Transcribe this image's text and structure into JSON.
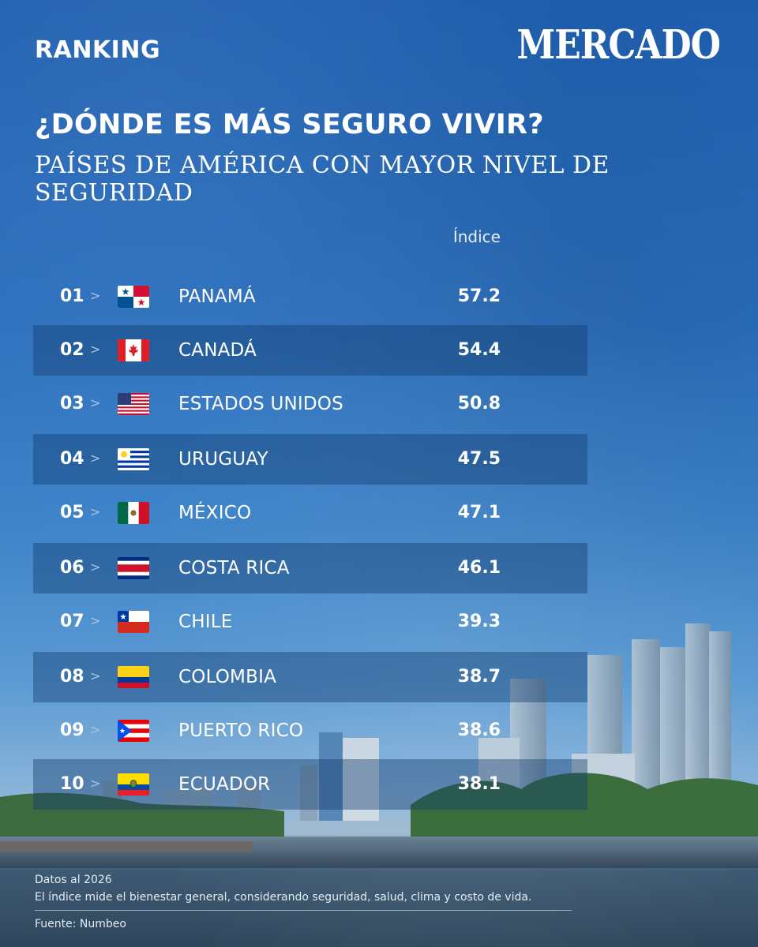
{
  "header": {
    "ranking_label": "RANKING",
    "brand": "MERCADO",
    "title": "¿DÓNDE ES MÁS SEGURO VIVIR?",
    "subtitle": "PAÍSES DE AMÉRICA CON MAYOR NIVEL DE SEGURIDAD"
  },
  "table": {
    "column_header": "Índice",
    "rows": [
      {
        "rank": "01",
        "country": "PANAMÁ",
        "value": "57.2",
        "flag": "panama-flag-icon"
      },
      {
        "rank": "02",
        "country": "CANADÁ",
        "value": "54.4",
        "flag": "canada-flag-icon"
      },
      {
        "rank": "03",
        "country": "ESTADOS UNIDOS",
        "value": "50.8",
        "flag": "usa-flag-icon"
      },
      {
        "rank": "04",
        "country": "URUGUAY",
        "value": "47.5",
        "flag": "uruguay-flag-icon"
      },
      {
        "rank": "05",
        "country": "MÉXICO",
        "value": "47.1",
        "flag": "mexico-flag-icon"
      },
      {
        "rank": "06",
        "country": "COSTA RICA",
        "value": "46.1",
        "flag": "costa-rica-flag-icon"
      },
      {
        "rank": "07",
        "country": "CHILE",
        "value": "39.3",
        "flag": "chile-flag-icon"
      },
      {
        "rank": "08",
        "country": "COLOMBIA",
        "value": "38.7",
        "flag": "colombia-flag-icon"
      },
      {
        "rank": "09",
        "country": "PUERTO RICO",
        "value": "38.6",
        "flag": "puerto-rico-flag-icon"
      },
      {
        "rank": "10",
        "country": "ECUADOR",
        "value": "38.1",
        "flag": "ecuador-flag-icon"
      }
    ]
  },
  "chart_data": {
    "type": "table",
    "title": "¿DÓNDE ES MÁS SEGURO VIVIR?",
    "subtitle": "PAÍSES DE AMÉRICA CON MAYOR NIVEL DE SEGURIDAD",
    "columns": [
      "Índice"
    ],
    "categories": [
      "PANAMÁ",
      "CANADÁ",
      "ESTADOS UNIDOS",
      "URUGUAY",
      "MÉXICO",
      "COSTA RICA",
      "CHILE",
      "COLOMBIA",
      "PUERTO RICO",
      "ECUADOR"
    ],
    "values": [
      57.2,
      54.4,
      50.8,
      47.5,
      47.1,
      46.1,
      39.3,
      38.7,
      38.6,
      38.1
    ]
  },
  "footer": {
    "date_note": "Datos al 2026",
    "description": "El índice mide el bienestar general, considerando seguridad, salud, clima y costo de vida.",
    "source": "Fuente: Numbeo"
  },
  "colors": {
    "background": "#2b6fbd",
    "row_shade": "#1a4a86",
    "text": "#ffffff"
  }
}
